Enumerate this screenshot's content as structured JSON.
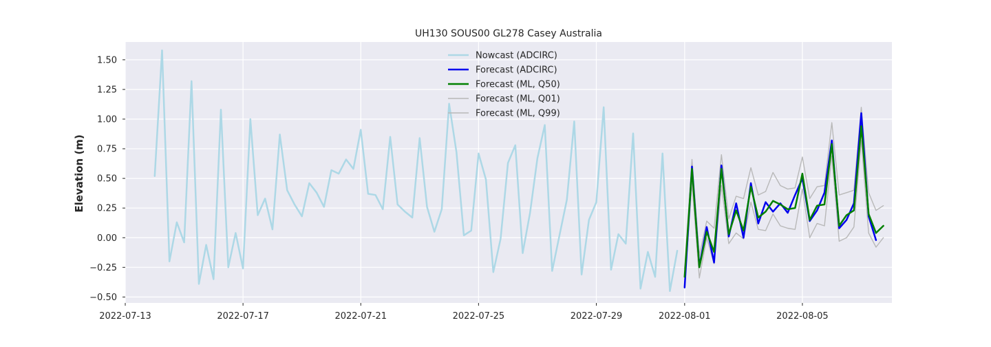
{
  "chart_data": {
    "type": "line",
    "title": "UH130 SOUS00 GL278 Casey Australia",
    "xlabel": "",
    "ylabel": "Elevation (m)",
    "grid": true,
    "legend_position": "top-center",
    "x_start_date": "2022-07-13",
    "xlim": [
      "2022-07-13",
      "2022-08-08"
    ],
    "ylim": [
      -0.55,
      1.65
    ],
    "x_ticks": [
      "2022-07-13",
      "2022-07-17",
      "2022-07-21",
      "2022-07-25",
      "2022-07-29",
      "2022-08-01",
      "2022-08-05"
    ],
    "y_ticks": [
      -0.5,
      -0.25,
      0.0,
      0.25,
      0.5,
      0.75,
      1.0,
      1.25,
      1.5
    ],
    "y_tick_labels": [
      "−0.50",
      "−0.25",
      "0.00",
      "0.25",
      "0.50",
      "0.75",
      "1.00",
      "1.25",
      "1.50"
    ],
    "series": [
      {
        "name": "Nowcast (ADCIRC)",
        "color": "#add8e6",
        "width": 2.5,
        "x": [
          1.0,
          1.25,
          1.5,
          1.75,
          2.0,
          2.25,
          2.5,
          2.75,
          3.0,
          3.25,
          3.5,
          3.75,
          4.0,
          4.25,
          4.5,
          4.75,
          5.0,
          5.25,
          5.5,
          5.75,
          6.0,
          6.25,
          6.5,
          6.75,
          7.0,
          7.25,
          7.5,
          7.75,
          8.0,
          8.25,
          8.5,
          8.75,
          9.0,
          9.25,
          9.5,
          9.75,
          10.0,
          10.25,
          10.5,
          10.75,
          11.0,
          11.25,
          11.5,
          11.75,
          12.0,
          12.25,
          12.5,
          12.75,
          13.0,
          13.25,
          13.5,
          13.75,
          14.0,
          14.25,
          14.5,
          14.75,
          15.0,
          15.25,
          15.5,
          15.75,
          16.0,
          16.25,
          16.5,
          16.75,
          17.0,
          17.25,
          17.5,
          17.75,
          18.0,
          18.25,
          18.5,
          18.75,
          19.0
        ],
        "values": [
          0.52,
          1.58,
          -0.2,
          0.13,
          -0.04,
          1.32,
          -0.39,
          -0.06,
          -0.35,
          1.08,
          -0.25,
          0.04,
          -0.26,
          1.0,
          0.19,
          0.33,
          0.07,
          0.87,
          0.4,
          0.28,
          0.18,
          0.46,
          0.38,
          0.26,
          0.57,
          0.54,
          0.66,
          0.58,
          0.91,
          0.37,
          0.36,
          0.24,
          0.85,
          0.28,
          0.22,
          0.17,
          0.84,
          0.26,
          0.05,
          0.24,
          1.13,
          0.72,
          0.02,
          0.06,
          0.71,
          0.49,
          -0.29,
          -0.01,
          0.63,
          0.78,
          -0.13,
          0.21,
          0.67,
          0.95,
          -0.28,
          0.02,
          0.32,
          0.98,
          -0.31,
          0.15,
          0.3,
          1.1,
          -0.27,
          0.03,
          -0.05,
          0.88,
          -0.43,
          -0.12,
          -0.33,
          0.71,
          -0.45,
          -0.11,
          null
        ]
      },
      {
        "name": "Forecast (ADCIRC)",
        "color": "#0000ee",
        "width": 2.5,
        "x": [
          19.0,
          19.25,
          19.5,
          19.75,
          20.0,
          20.25,
          20.5,
          20.75,
          21.0,
          21.25,
          21.5,
          21.75,
          22.0,
          22.25,
          22.5,
          22.75,
          23.0,
          23.25,
          23.5,
          23.75,
          24.0,
          24.25,
          24.5,
          24.75,
          25.0,
          25.25,
          25.5,
          25.75
        ],
        "values": [
          -0.42,
          0.6,
          -0.24,
          0.09,
          -0.21,
          0.61,
          0.01,
          0.29,
          0.0,
          0.46,
          0.12,
          0.3,
          0.22,
          0.29,
          0.21,
          0.36,
          0.5,
          0.14,
          0.23,
          0.38,
          0.82,
          0.08,
          0.15,
          0.29,
          1.05,
          0.18,
          -0.02,
          null
        ]
      },
      {
        "name": "Forecast (ML, Q50)",
        "color": "#008000",
        "width": 2.5,
        "x": [
          19.0,
          19.25,
          19.5,
          19.75,
          20.0,
          20.25,
          20.5,
          20.75,
          21.0,
          21.25,
          21.5,
          21.75,
          22.0,
          22.25,
          22.5,
          22.75,
          23.0,
          23.25,
          23.5,
          23.75,
          24.0,
          24.25,
          24.5,
          24.75,
          25.0,
          25.25,
          25.5,
          25.75
        ],
        "values": [
          -0.33,
          0.58,
          -0.25,
          0.05,
          -0.12,
          0.58,
          0.03,
          0.23,
          0.06,
          0.43,
          0.17,
          0.22,
          0.31,
          0.28,
          0.24,
          0.25,
          0.54,
          0.15,
          0.27,
          0.28,
          0.79,
          0.1,
          0.19,
          0.23,
          0.94,
          0.2,
          0.04,
          0.1
        ]
      },
      {
        "name": "Forecast (ML, Q01)",
        "color": "#b8b8b8",
        "width": 1.4,
        "x": [
          19.0,
          19.25,
          19.5,
          19.75,
          20.0,
          20.25,
          20.5,
          20.75,
          21.0,
          21.25,
          21.5,
          21.75,
          22.0,
          22.25,
          22.5,
          22.75,
          23.0,
          23.25,
          23.5,
          23.75,
          24.0,
          24.25,
          24.5,
          24.75,
          25.0,
          25.25,
          25.5,
          25.75
        ],
        "values": [
          -0.4,
          0.46,
          -0.34,
          0.0,
          -0.22,
          0.44,
          -0.05,
          0.04,
          -0.01,
          0.3,
          0.07,
          0.06,
          0.2,
          0.1,
          0.08,
          0.07,
          0.41,
          0.0,
          0.12,
          0.1,
          0.69,
          -0.03,
          0.0,
          0.09,
          0.82,
          0.04,
          -0.08,
          0.0
        ]
      },
      {
        "name": "Forecast (ML, Q99)",
        "color": "#b8b8b8",
        "width": 1.4,
        "x": [
          19.0,
          19.25,
          19.5,
          19.75,
          20.0,
          20.25,
          20.5,
          20.75,
          21.0,
          21.25,
          21.5,
          21.75,
          22.0,
          22.25,
          22.5,
          22.75,
          23.0,
          23.25,
          23.5,
          23.75,
          24.0,
          24.25,
          24.5,
          24.75,
          25.0,
          25.25,
          25.5,
          25.75
        ],
        "values": [
          -0.26,
          0.66,
          -0.15,
          0.14,
          0.08,
          0.7,
          0.16,
          0.35,
          0.33,
          0.59,
          0.36,
          0.39,
          0.55,
          0.44,
          0.41,
          0.42,
          0.68,
          0.33,
          0.43,
          0.44,
          0.97,
          0.36,
          0.38,
          0.4,
          1.1,
          0.38,
          0.23,
          0.27
        ]
      }
    ]
  }
}
